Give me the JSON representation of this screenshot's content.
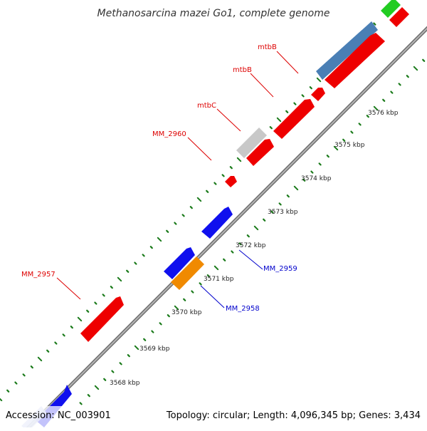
{
  "title": "Methanosarcina mazei Go1, complete genome",
  "footer": {
    "accession": "Accession: NC_003901",
    "summary": "Topology: circular; Length: 4,096,345 bp; Genes: 3,434"
  },
  "colors": {
    "backbone": "#8a8a8a",
    "ticks": "#1a7a1a",
    "forward_label": "#dd0000",
    "reverse_label": "#0000cc",
    "red": "#ee0000",
    "blue": "#1010ee",
    "steelblue": "#4a7fb5",
    "grey": "#c8c8c8",
    "orange": "#f08a00",
    "green": "#22cc22",
    "lightblue": "#b8c4ee"
  },
  "ticks": [
    {
      "label": "3568 kbp"
    },
    {
      "label": "3569 kbp"
    },
    {
      "label": "3570 kbp"
    },
    {
      "label": "3571 kbp"
    },
    {
      "label": "3572 kbp"
    },
    {
      "label": "3573 kbp"
    },
    {
      "label": "3574 kbp"
    },
    {
      "label": "3575 kbp"
    },
    {
      "label": "3576 kbp"
    }
  ],
  "labels": {
    "mtbB_1": "mtbB",
    "mtbB_2": "mtbB",
    "mtbC": "mtbC",
    "MM_2960": "MM_2960",
    "MM_2957": "MM_2957",
    "MM_2959": "MM_2959",
    "MM_2958": "MM_2958"
  }
}
